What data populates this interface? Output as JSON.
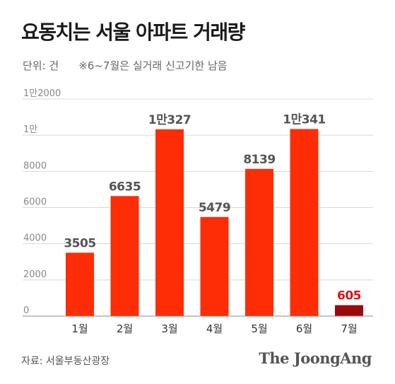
{
  "header": {
    "title": "요동치는 서울 아파트 거래량",
    "unit": "단위: 건",
    "note": "※6~7월은 실거래 신고기한 남음"
  },
  "footer": {
    "source": "자료: 서울부동산광장",
    "logo": "The JoongAng"
  },
  "chart_data": {
    "type": "bar",
    "categories": [
      "1월",
      "2월",
      "3월",
      "4월",
      "5월",
      "6월",
      "7월"
    ],
    "values": [
      3505,
      6635,
      10327,
      5479,
      8139,
      10341,
      605
    ],
    "value_labels": [
      "3505",
      "6635",
      "1만327",
      "5479",
      "8139",
      "1만341",
      "605"
    ],
    "yticks": [
      0,
      2000,
      4000,
      6000,
      8000,
      10000,
      12000
    ],
    "ytick_labels": [
      "0",
      "2000",
      "4000",
      "6000",
      "8000",
      "1만",
      "1만2000"
    ],
    "ylim": [
      0,
      12000
    ],
    "grid": true,
    "colors": {
      "bar": "#ff2d05",
      "highlight_bar": "#9a0a0a",
      "label": "#555555",
      "highlight_label": "#e01010",
      "grid": "#d8d8d8"
    },
    "highlight_index": 6
  }
}
